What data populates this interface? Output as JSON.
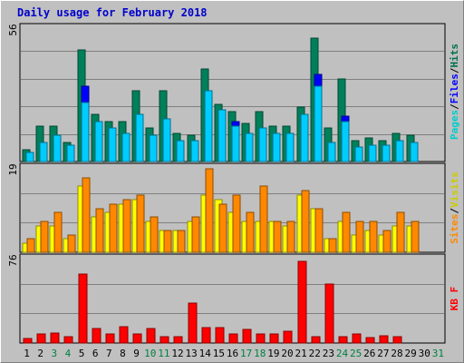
{
  "chart_data": {
    "type": "bar",
    "title": "Daily usage for February 2018",
    "categories": [
      "1",
      "2",
      "3",
      "4",
      "5",
      "6",
      "7",
      "8",
      "9",
      "10",
      "11",
      "12",
      "13",
      "14",
      "15",
      "16",
      "17",
      "18",
      "19",
      "20",
      "21",
      "22",
      "23",
      "24",
      "25",
      "26",
      "27",
      "28",
      "29",
      "30",
      "31"
    ],
    "weekend_days": [
      "3",
      "4",
      "10",
      "11",
      "17",
      "18",
      "24",
      "25",
      "31"
    ],
    "panels": [
      {
        "name": "traffic",
        "ymax_label": "56",
        "ylim": [
          0,
          56
        ],
        "axis_labels": [
          {
            "text": "Pages",
            "color": "#00cccc"
          },
          {
            "text": "/",
            "color": "#000000"
          },
          {
            "text": "Files",
            "color": "#0000ff"
          },
          {
            "text": "/",
            "color": "#000000"
          },
          {
            "text": "Hits",
            "color": "#007050"
          }
        ],
        "series": [
          {
            "name": "Hits",
            "color": "#00805a",
            "values": [
              5,
              15,
              15,
              8,
              47,
              20,
              17,
              17,
              30,
              14,
              30,
              12,
              11,
              39,
              24,
              21,
              16,
              21,
              15,
              15,
              23,
              52,
              14,
              35,
              9,
              10,
              9,
              12,
              11,
              0,
              0
            ]
          },
          {
            "name": "Files",
            "color": "#0000ff",
            "values": [
              4,
              8,
              11,
              7,
              32,
              16,
              14,
              12,
              20,
              11,
              18,
              9,
              9,
              20,
              22,
              17,
              12,
              14,
              12,
              12,
              20,
              37,
              8,
              19,
              6,
              7,
              7,
              9,
              8,
              0,
              0
            ]
          },
          {
            "name": "Pages",
            "color": "#00ccff",
            "values": [
              4,
              8,
              11,
              7,
              25,
              17,
              14,
              12,
              20,
              11,
              18,
              9,
              9,
              30,
              22,
              15,
              12,
              14,
              12,
              12,
              20,
              32,
              8,
              17,
              6,
              7,
              7,
              9,
              8,
              0,
              0
            ]
          }
        ]
      },
      {
        "name": "visits",
        "ymax_label": "19",
        "ylim": [
          0,
          19
        ],
        "axis_labels": [
          {
            "text": "Sites",
            "color": "#ff8800"
          },
          {
            "text": "/",
            "color": "#000000"
          },
          {
            "text": "Visits",
            "color": "#cccc00"
          }
        ],
        "series": [
          {
            "name": "Visits",
            "color": "#ffff00",
            "values": [
              2,
              6,
              6,
              3,
              15,
              8,
              9,
              11,
              12,
              7,
              5,
              5,
              7,
              13,
              12,
              9,
              7,
              7,
              7,
              6,
              13,
              10,
              3,
              7,
              4,
              5,
              4,
              6,
              6,
              0,
              0
            ]
          },
          {
            "name": "Sites",
            "color": "#ff8800",
            "values": [
              3,
              7,
              9,
              4,
              17,
              10,
              11,
              12,
              13,
              8,
              5,
              5,
              8,
              19,
              11,
              13,
              9,
              15,
              7,
              7,
              14,
              10,
              3,
              9,
              7,
              7,
              5,
              9,
              7,
              0,
              0
            ]
          }
        ]
      },
      {
        "name": "volume",
        "ymax_label": "76",
        "ylim": [
          0,
          76
        ],
        "axis_labels": [
          {
            "text": "KB F",
            "color": "#ff0000"
          }
        ],
        "series": [
          {
            "name": "KB F",
            "color": "#ff0000",
            "values": [
              4,
              8,
              9,
              6,
              63,
              13,
              8,
              15,
              8,
              13,
              6,
              6,
              36,
              14,
              14,
              8,
              12,
              8,
              8,
              11,
              74,
              6,
              54,
              6,
              8,
              5,
              7,
              6,
              0,
              0,
              0
            ]
          }
        ]
      }
    ],
    "grid": true
  }
}
